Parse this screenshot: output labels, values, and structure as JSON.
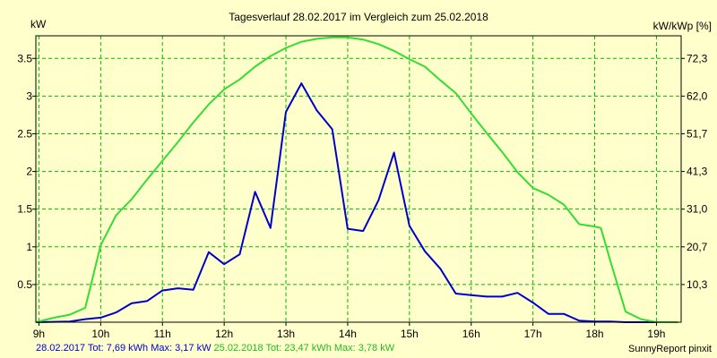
{
  "chart_data": {
    "type": "line",
    "title": "Tagesverlauf 28.02.2017 im Vergleich zum 25.02.2018",
    "y_left_unit": "kW",
    "y_right_unit": "kW/kWp [%]",
    "x_ticks": [
      "9h",
      "10h",
      "11h",
      "12h",
      "13h",
      "14h",
      "15h",
      "16h",
      "17h",
      "18h",
      "19h"
    ],
    "xlim": [
      8.95,
      19.4
    ],
    "ylim": [
      0,
      3.8
    ],
    "y_left_ticks": [
      "0.5",
      "1",
      "1.5",
      "2",
      "2.5",
      "3",
      "3.5"
    ],
    "y_right_ticks": [
      "10,3",
      "20,7",
      "31,0",
      "41,3",
      "51,7",
      "62,0",
      "72,3"
    ],
    "grid": true,
    "series": [
      {
        "color": "#0000cc",
        "x": [
          8.95,
          9.5,
          9.75,
          10.0,
          10.25,
          10.5,
          10.75,
          11.0,
          11.25,
          11.5,
          11.75,
          12.0,
          12.25,
          12.5,
          12.75,
          13.0,
          13.25,
          13.5,
          13.75,
          14.0,
          14.25,
          14.5,
          14.75,
          15.0,
          15.25,
          15.5,
          15.75,
          16.0,
          16.25,
          16.5,
          16.75,
          17.0,
          17.25,
          17.5,
          17.75,
          18.0,
          18.25,
          18.5,
          18.75,
          19.0
        ],
        "y": [
          0.0,
          0.01,
          0.04,
          0.06,
          0.13,
          0.25,
          0.28,
          0.42,
          0.45,
          0.43,
          0.93,
          0.77,
          0.9,
          1.73,
          1.25,
          2.79,
          3.17,
          2.81,
          2.56,
          1.24,
          1.21,
          1.62,
          2.25,
          1.28,
          0.94,
          0.71,
          0.38,
          0.36,
          0.34,
          0.34,
          0.39,
          0.26,
          0.11,
          0.11,
          0.02,
          0.01,
          0.01,
          0.0,
          0.0,
          0.0
        ]
      },
      {
        "color": "#33dd33",
        "x": [
          8.95,
          9.25,
          9.5,
          9.75,
          10.0,
          10.25,
          10.5,
          10.75,
          11.0,
          11.25,
          11.5,
          11.75,
          12.0,
          12.25,
          12.5,
          12.75,
          13.0,
          13.25,
          13.5,
          13.75,
          14.0,
          14.25,
          14.5,
          14.75,
          15.0,
          15.25,
          15.5,
          15.75,
          16.0,
          16.25,
          16.5,
          16.75,
          17.0,
          17.25,
          17.5,
          17.75,
          18.0,
          18.1,
          18.25,
          18.5,
          18.75,
          19.0,
          19.35
        ],
        "y": [
          0.0,
          0.06,
          0.1,
          0.19,
          1.02,
          1.42,
          1.63,
          1.89,
          2.14,
          2.39,
          2.65,
          2.89,
          3.09,
          3.22,
          3.39,
          3.53,
          3.64,
          3.72,
          3.76,
          3.78,
          3.78,
          3.75,
          3.69,
          3.6,
          3.49,
          3.39,
          3.21,
          3.04,
          2.77,
          2.51,
          2.26,
          1.99,
          1.78,
          1.69,
          1.56,
          1.3,
          1.27,
          1.25,
          0.82,
          0.14,
          0.04,
          0.0,
          0.0
        ]
      }
    ]
  },
  "footer": {
    "series1_text": "28.02.2017 Tot: 7,69 kWh Max: 3,17 kW",
    "series2_text": "25.02.2018 Tot: 23,47 kWh Max: 3,78 kW",
    "credit": "SunnyReport pinxit"
  }
}
